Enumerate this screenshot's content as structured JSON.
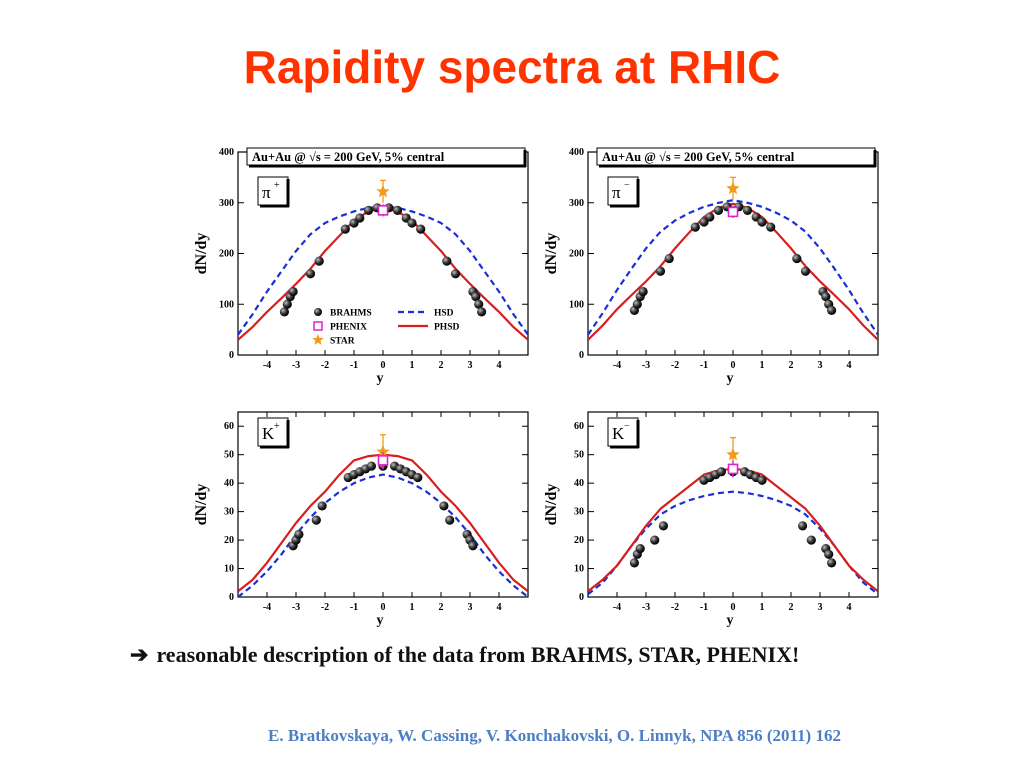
{
  "slide": {
    "title": "Rapidity spectra at RHIC",
    "conclusion_arrow": "➔",
    "conclusion": "reasonable description of the data from BRAHMS, STAR, PHENIX!",
    "citation": "E. Bratkovskaya,  W. Cassing,  V. Konchakovski,  O. Linnyk, NPA 856 (2011) 162"
  },
  "colors": {
    "title": "#ff3300",
    "hsd": "#1a2fd6",
    "phsd": "#d81e1e",
    "phenix": "#e020d0",
    "star": "#f29a1a",
    "brahms": "#111111",
    "citation": "#4d7fc4"
  },
  "chart_data": [
    {
      "type": "scatter",
      "header": "Au+Au @ √s = 200 GeV, 5% central",
      "particle": "π",
      "charge": "+",
      "xlabel": "y",
      "ylabel": "dN/dy",
      "xlim": [
        -5,
        5
      ],
      "ylim": [
        0,
        400
      ],
      "xticks": [
        -4,
        -3,
        -2,
        -1,
        0,
        1,
        2,
        3,
        4
      ],
      "yticks": [
        0,
        100,
        200,
        300,
        400
      ],
      "legend": [
        {
          "key": "BRAHMS",
          "label": "BRAHMS",
          "marker": "ball"
        },
        {
          "key": "PHENIX",
          "label": "PHENIX",
          "marker": "square"
        },
        {
          "key": "STAR",
          "label": "STAR",
          "marker": "star"
        },
        {
          "key": "HSD",
          "label": "HSD",
          "marker": "dash"
        },
        {
          "key": "PHSD",
          "label": "PHSD",
          "marker": "line"
        }
      ],
      "series": [
        {
          "name": "BRAHMS",
          "x": [
            -3.4,
            -3.3,
            -3.2,
            -3.1,
            -2.5,
            -2.2,
            -1.3,
            -1.0,
            -0.8,
            -0.5,
            -0.2,
            0.2,
            0.5,
            0.8,
            1.0,
            1.3,
            2.2,
            2.5,
            3.1,
            3.2,
            3.3,
            3.4
          ],
          "y": [
            85,
            100,
            115,
            125,
            160,
            185,
            248,
            260,
            270,
            285,
            290,
            290,
            285,
            270,
            260,
            248,
            185,
            160,
            125,
            115,
            100,
            85
          ]
        },
        {
          "name": "PHENIX",
          "x": [
            0
          ],
          "y": [
            285
          ],
          "err": [
            12
          ]
        },
        {
          "name": "STAR",
          "x": [
            0
          ],
          "y": [
            322
          ],
          "err": [
            22
          ]
        },
        {
          "name": "HSD",
          "x": [
            -5,
            -4.5,
            -4,
            -3.5,
            -3,
            -2.5,
            -2,
            -1.5,
            -1,
            -0.5,
            0,
            0.5,
            1,
            1.5,
            2,
            2.5,
            3,
            3.5,
            4,
            4.5,
            5
          ],
          "y": [
            40,
            80,
            125,
            165,
            205,
            238,
            260,
            273,
            283,
            290,
            292,
            290,
            283,
            273,
            260,
            238,
            205,
            165,
            125,
            80,
            40
          ]
        },
        {
          "name": "PHSD",
          "x": [
            -5,
            -4.5,
            -4,
            -3.5,
            -3,
            -2.5,
            -2,
            -1.5,
            -1,
            -0.5,
            0,
            0.5,
            1,
            1.5,
            2,
            2.5,
            3,
            3.5,
            4,
            4.5,
            5
          ],
          "y": [
            30,
            55,
            85,
            112,
            140,
            170,
            205,
            235,
            265,
            283,
            290,
            283,
            265,
            235,
            205,
            170,
            140,
            112,
            85,
            55,
            30
          ]
        }
      ]
    },
    {
      "type": "scatter",
      "header": "Au+Au @ √s = 200 GeV, 5% central",
      "particle": "π",
      "charge": "−",
      "xlabel": "y",
      "ylabel": "dN/dy",
      "xlim": [
        -5,
        5
      ],
      "ylim": [
        0,
        400
      ],
      "xticks": [
        -4,
        -3,
        -2,
        -1,
        0,
        1,
        2,
        3,
        4
      ],
      "yticks": [
        0,
        100,
        200,
        300,
        400
      ],
      "series": [
        {
          "name": "BRAHMS",
          "x": [
            -3.4,
            -3.3,
            -3.2,
            -3.1,
            -2.5,
            -2.2,
            -1.3,
            -1.0,
            -0.8,
            -0.5,
            -0.2,
            0.2,
            0.5,
            0.8,
            1.0,
            1.3,
            2.2,
            2.5,
            3.1,
            3.2,
            3.3,
            3.4
          ],
          "y": [
            88,
            100,
            115,
            125,
            165,
            190,
            252,
            262,
            272,
            285,
            292,
            292,
            285,
            272,
            262,
            252,
            190,
            165,
            125,
            115,
            100,
            88
          ]
        },
        {
          "name": "PHENIX",
          "x": [
            0
          ],
          "y": [
            282
          ],
          "err": [
            12
          ]
        },
        {
          "name": "STAR",
          "x": [
            0
          ],
          "y": [
            328
          ],
          "err": [
            22
          ]
        },
        {
          "name": "HSD",
          "x": [
            -5,
            -4.5,
            -4,
            -3.5,
            -3,
            -2.5,
            -2,
            -1.5,
            -1,
            -0.5,
            0,
            0.5,
            1,
            1.5,
            2,
            2.5,
            3,
            3.5,
            4,
            4.5,
            5
          ],
          "y": [
            40,
            82,
            128,
            170,
            210,
            243,
            265,
            280,
            292,
            300,
            305,
            300,
            292,
            280,
            265,
            243,
            210,
            170,
            128,
            82,
            40
          ]
        },
        {
          "name": "PHSD",
          "x": [
            -5,
            -4.5,
            -4,
            -3.5,
            -3,
            -2.5,
            -2,
            -1.5,
            -1,
            -0.5,
            0,
            0.5,
            1,
            1.5,
            2,
            2.5,
            3,
            3.5,
            4,
            4.5,
            5
          ],
          "y": [
            30,
            58,
            90,
            118,
            145,
            175,
            210,
            242,
            272,
            290,
            298,
            290,
            272,
            242,
            210,
            175,
            145,
            118,
            90,
            58,
            30
          ]
        }
      ]
    },
    {
      "type": "scatter",
      "particle": "K",
      "charge": "+",
      "xlabel": "y",
      "ylabel": "dN/dy",
      "xlim": [
        -5,
        5
      ],
      "ylim": [
        0,
        65
      ],
      "xticks": [
        -4,
        -3,
        -2,
        -1,
        0,
        1,
        2,
        3,
        4
      ],
      "yticks": [
        0,
        10,
        20,
        30,
        40,
        50,
        60
      ],
      "series": [
        {
          "name": "BRAHMS",
          "x": [
            -3.1,
            -3.0,
            -2.9,
            -2.3,
            -2.1,
            -1.2,
            -1.0,
            -0.8,
            -0.6,
            -0.4,
            0,
            0.4,
            0.6,
            0.8,
            1.0,
            1.2,
            2.1,
            2.3,
            2.9,
            3.0,
            3.1
          ],
          "y": [
            18,
            20,
            22,
            27,
            32,
            42,
            43,
            44,
            45,
            46,
            46,
            46,
            45,
            44,
            43,
            42,
            32,
            27,
            22,
            20,
            18
          ]
        },
        {
          "name": "PHENIX",
          "x": [
            0
          ],
          "y": [
            48
          ],
          "err": [
            3
          ]
        },
        {
          "name": "STAR",
          "x": [
            0
          ],
          "y": [
            51
          ],
          "err": [
            6
          ]
        },
        {
          "name": "HSD",
          "x": [
            -5,
            -4.5,
            -4,
            -3.5,
            -3,
            -2.5,
            -2,
            -1.5,
            -1,
            -0.5,
            0,
            0.5,
            1,
            1.5,
            2,
            2.5,
            3,
            3.5,
            4,
            4.5,
            5
          ],
          "y": [
            0,
            4,
            9,
            15,
            22,
            28,
            33,
            37,
            40,
            42,
            43,
            42,
            40,
            37,
            33,
            28,
            22,
            15,
            9,
            4,
            0
          ]
        },
        {
          "name": "PHSD",
          "x": [
            -5,
            -4.5,
            -4,
            -3.5,
            -3,
            -2.5,
            -2,
            -1.5,
            -1,
            -0.5,
            0,
            0.5,
            1,
            1.5,
            2,
            2.5,
            3,
            3.5,
            4,
            4.5,
            5
          ],
          "y": [
            2,
            6,
            12,
            19,
            26,
            32,
            37,
            43,
            48,
            49.5,
            50,
            49.5,
            48,
            43,
            37,
            32,
            26,
            19,
            12,
            6,
            2
          ]
        }
      ]
    },
    {
      "type": "scatter",
      "particle": "K",
      "charge": "−",
      "xlabel": "y",
      "ylabel": "dN/dy",
      "xlim": [
        -5,
        5
      ],
      "ylim": [
        0,
        65
      ],
      "xticks": [
        -4,
        -3,
        -2,
        -1,
        0,
        1,
        2,
        3,
        4
      ],
      "yticks": [
        0,
        10,
        20,
        30,
        40,
        50,
        60
      ],
      "series": [
        {
          "name": "BRAHMS",
          "x": [
            -3.4,
            -3.3,
            -3.2,
            -2.7,
            -2.4,
            -1.0,
            -0.8,
            -0.6,
            -0.4,
            0,
            0.4,
            0.6,
            0.8,
            1.0,
            2.4,
            2.7,
            3.2,
            3.3,
            3.4
          ],
          "y": [
            12,
            15,
            17,
            20,
            25,
            41,
            42,
            43,
            44,
            44,
            44,
            43,
            42,
            41,
            25,
            20,
            17,
            15,
            12
          ]
        },
        {
          "name": "PHENIX",
          "x": [
            0
          ],
          "y": [
            45
          ],
          "err": [
            3
          ]
        },
        {
          "name": "STAR",
          "x": [
            0
          ],
          "y": [
            50
          ],
          "err": [
            6
          ]
        },
        {
          "name": "HSD",
          "x": [
            -5,
            -4.5,
            -4,
            -3.5,
            -3,
            -2.5,
            -2,
            -1.5,
            -1,
            -0.5,
            0,
            0.5,
            1,
            1.5,
            2,
            2.5,
            3,
            3.5,
            4,
            4.5,
            5
          ],
          "y": [
            1,
            5,
            11,
            18,
            24,
            29,
            32,
            34,
            35.5,
            36.5,
            37,
            36.5,
            35.5,
            34,
            32,
            29,
            24,
            18,
            11,
            5,
            1
          ]
        },
        {
          "name": "PHSD",
          "x": [
            -5,
            -4.5,
            -4,
            -3.5,
            -3,
            -2.5,
            -2,
            -1.5,
            -1,
            -0.5,
            0,
            0.5,
            1,
            1.5,
            2,
            2.5,
            3,
            3.5,
            4,
            4.5,
            5
          ],
          "y": [
            2,
            6,
            11,
            18,
            25,
            31,
            35,
            39,
            43,
            44.5,
            45,
            44.5,
            43,
            39,
            35,
            31,
            25,
            18,
            11,
            6,
            2
          ]
        }
      ]
    }
  ]
}
